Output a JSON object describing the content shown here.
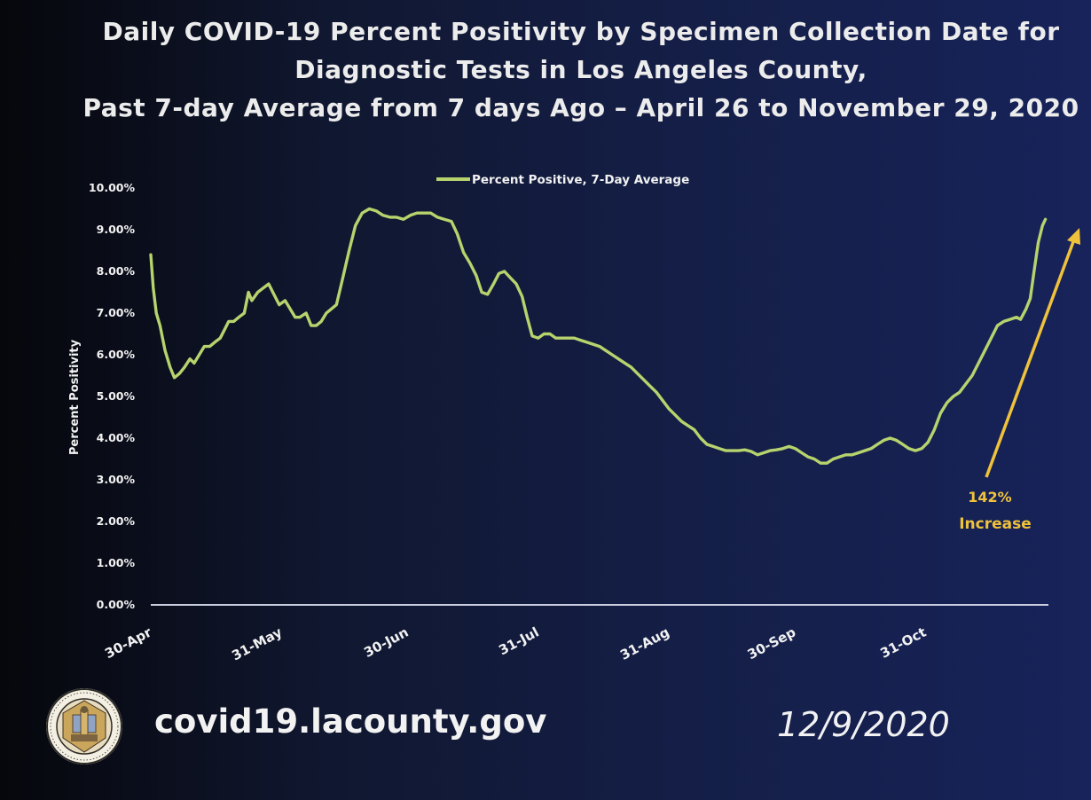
{
  "title_lines": [
    "Daily COVID-19 Percent Positivity by Specimen Collection Date for",
    "Diagnostic Tests in Los Angeles County,",
    "Past 7-day Average from 7 days Ago – April 26 to November 29, 2020"
  ],
  "footer": {
    "url": "covid19.lacounty.gov",
    "date": "12/9/2020"
  },
  "seal": {
    "lettering": "COUNTY OF LOS ANGELES • CALIFORNIA"
  },
  "colors": {
    "line": "#b7d36d",
    "arrow": "#f0c23b",
    "annotation": "#f0c23b",
    "axis": "#c9cde0",
    "text": "#f2f2f2"
  },
  "chart_data": {
    "type": "line",
    "title": "Daily COVID-19 Percent Positivity by Specimen Collection Date for Diagnostic Tests in Los Angeles County, Past 7-day Average from 7 days Ago – April 26 to November 29, 2020",
    "ylabel": "Percent Positivity",
    "xlabel": "",
    "ylim": [
      0,
      10
    ],
    "xlim_days": [
      0,
      213
    ],
    "y_ticks": [
      "0.00%",
      "1.00%",
      "2.00%",
      "3.00%",
      "4.00%",
      "5.00%",
      "6.00%",
      "7.00%",
      "8.00%",
      "9.00%",
      "10.00%"
    ],
    "x_ticks": [
      {
        "label": "30-Apr",
        "day": 0
      },
      {
        "label": "31-May",
        "day": 31
      },
      {
        "label": "30-Jun",
        "day": 61
      },
      {
        "label": "31-Jul",
        "day": 92
      },
      {
        "label": "31-Aug",
        "day": 123
      },
      {
        "label": "30-Sep",
        "day": 153
      },
      {
        "label": "31-Oct",
        "day": 184
      }
    ],
    "legend": {
      "label": "Percent Positive, 7-Day Average",
      "position": "top-center"
    },
    "series": [
      {
        "name": "Percent Positive, 7-Day Average",
        "points": [
          [
            0,
            8.4
          ],
          [
            0.6,
            7.6
          ],
          [
            1.3,
            7.0
          ],
          [
            2.2,
            6.7
          ],
          [
            3.4,
            6.1
          ],
          [
            4.6,
            5.7
          ],
          [
            5.6,
            5.45
          ],
          [
            6.8,
            5.55
          ],
          [
            8.0,
            5.7
          ],
          [
            9.3,
            5.9
          ],
          [
            10.3,
            5.8
          ],
          [
            11.5,
            6.0
          ],
          [
            12.7,
            6.2
          ],
          [
            14.0,
            6.2
          ],
          [
            15.2,
            6.3
          ],
          [
            16.5,
            6.4
          ],
          [
            17.5,
            6.6
          ],
          [
            18.5,
            6.8
          ],
          [
            19.7,
            6.8
          ],
          [
            20.9,
            6.9
          ],
          [
            22.2,
            7.0
          ],
          [
            23.2,
            7.5
          ],
          [
            24.0,
            7.3
          ],
          [
            25.4,
            7.5
          ],
          [
            26.7,
            7.6
          ],
          [
            28.0,
            7.7
          ],
          [
            29.0,
            7.5
          ],
          [
            30.5,
            7.2
          ],
          [
            31.9,
            7.3
          ],
          [
            33.1,
            7.1
          ],
          [
            34.3,
            6.9
          ],
          [
            35.4,
            6.9
          ],
          [
            36.9,
            7.0
          ],
          [
            38.1,
            6.7
          ],
          [
            39.3,
            6.7
          ],
          [
            40.5,
            6.8
          ],
          [
            41.7,
            7.0
          ],
          [
            42.9,
            7.1
          ],
          [
            44.1,
            7.2
          ],
          [
            45.5,
            7.8
          ],
          [
            47.1,
            8.5
          ],
          [
            48.6,
            9.1
          ],
          [
            50.2,
            9.4
          ],
          [
            51.9,
            9.5
          ],
          [
            53.6,
            9.45
          ],
          [
            55.1,
            9.35
          ],
          [
            56.8,
            9.3
          ],
          [
            58.3,
            9.3
          ],
          [
            60.0,
            9.25
          ],
          [
            61.7,
            9.35
          ],
          [
            63.2,
            9.4
          ],
          [
            64.9,
            9.4
          ],
          [
            66.5,
            9.4
          ],
          [
            68.1,
            9.3
          ],
          [
            69.7,
            9.25
          ],
          [
            71.4,
            9.2
          ],
          [
            72.8,
            8.9
          ],
          [
            74.3,
            8.45
          ],
          [
            75.8,
            8.2
          ],
          [
            77.3,
            7.9
          ],
          [
            78.6,
            7.5
          ],
          [
            80.0,
            7.45
          ],
          [
            81.4,
            7.7
          ],
          [
            82.7,
            7.95
          ],
          [
            84.0,
            8.0
          ],
          [
            85.4,
            7.85
          ],
          [
            86.8,
            7.7
          ],
          [
            88.2,
            7.4
          ],
          [
            89.4,
            6.9
          ],
          [
            90.6,
            6.45
          ],
          [
            92.0,
            6.4
          ],
          [
            93.4,
            6.5
          ],
          [
            94.8,
            6.5
          ],
          [
            96.2,
            6.4
          ],
          [
            97.6,
            6.4
          ],
          [
            99.1,
            6.4
          ],
          [
            100.6,
            6.4
          ],
          [
            102.1,
            6.35
          ],
          [
            103.6,
            6.3
          ],
          [
            105.1,
            6.25
          ],
          [
            106.6,
            6.2
          ],
          [
            108.1,
            6.1
          ],
          [
            109.6,
            6.0
          ],
          [
            111.1,
            5.9
          ],
          [
            112.6,
            5.8
          ],
          [
            114.1,
            5.7
          ],
          [
            115.6,
            5.55
          ],
          [
            117.1,
            5.4
          ],
          [
            118.6,
            5.25
          ],
          [
            120.1,
            5.1
          ],
          [
            121.6,
            4.9
          ],
          [
            123.1,
            4.7
          ],
          [
            124.6,
            4.55
          ],
          [
            126.1,
            4.4
          ],
          [
            127.6,
            4.3
          ],
          [
            129.1,
            4.2
          ],
          [
            130.6,
            4.0
          ],
          [
            132.1,
            3.85
          ],
          [
            133.6,
            3.8
          ],
          [
            135.1,
            3.75
          ],
          [
            136.6,
            3.7
          ],
          [
            138.1,
            3.7
          ],
          [
            139.6,
            3.7
          ],
          [
            141.1,
            3.72
          ],
          [
            142.6,
            3.68
          ],
          [
            144.1,
            3.6
          ],
          [
            145.6,
            3.65
          ],
          [
            147.1,
            3.7
          ],
          [
            148.6,
            3.72
          ],
          [
            150.1,
            3.75
          ],
          [
            151.6,
            3.8
          ],
          [
            153.1,
            3.75
          ],
          [
            154.6,
            3.65
          ],
          [
            156.1,
            3.55
          ],
          [
            157.6,
            3.5
          ],
          [
            159.1,
            3.4
          ],
          [
            160.6,
            3.4
          ],
          [
            162.1,
            3.5
          ],
          [
            163.6,
            3.55
          ],
          [
            165.1,
            3.6
          ],
          [
            166.6,
            3.6
          ],
          [
            168.1,
            3.65
          ],
          [
            169.6,
            3.7
          ],
          [
            171.1,
            3.75
          ],
          [
            172.6,
            3.85
          ],
          [
            174.1,
            3.95
          ],
          [
            175.6,
            4.0
          ],
          [
            177.1,
            3.95
          ],
          [
            178.6,
            3.85
          ],
          [
            180.1,
            3.75
          ],
          [
            181.6,
            3.7
          ],
          [
            183.1,
            3.75
          ],
          [
            184.6,
            3.9
          ],
          [
            186.1,
            4.2
          ],
          [
            187.6,
            4.6
          ],
          [
            189.1,
            4.85
          ],
          [
            190.6,
            5.0
          ],
          [
            192.1,
            5.1
          ],
          [
            193.6,
            5.3
          ],
          [
            195.1,
            5.5
          ],
          [
            196.6,
            5.8
          ],
          [
            198.1,
            6.1
          ],
          [
            199.6,
            6.4
          ],
          [
            201.1,
            6.7
          ],
          [
            202.6,
            6.8
          ],
          [
            204.1,
            6.85
          ],
          [
            205.6,
            6.9
          ],
          [
            206.6,
            6.85
          ],
          [
            207.9,
            7.1
          ],
          [
            208.9,
            7.35
          ],
          [
            209.8,
            8.0
          ],
          [
            210.8,
            8.7
          ],
          [
            211.8,
            9.1
          ],
          [
            212.5,
            9.25
          ]
        ]
      }
    ],
    "annotations": [
      {
        "text": "142%",
        "sub": "Increase",
        "arrow": true
      }
    ]
  }
}
